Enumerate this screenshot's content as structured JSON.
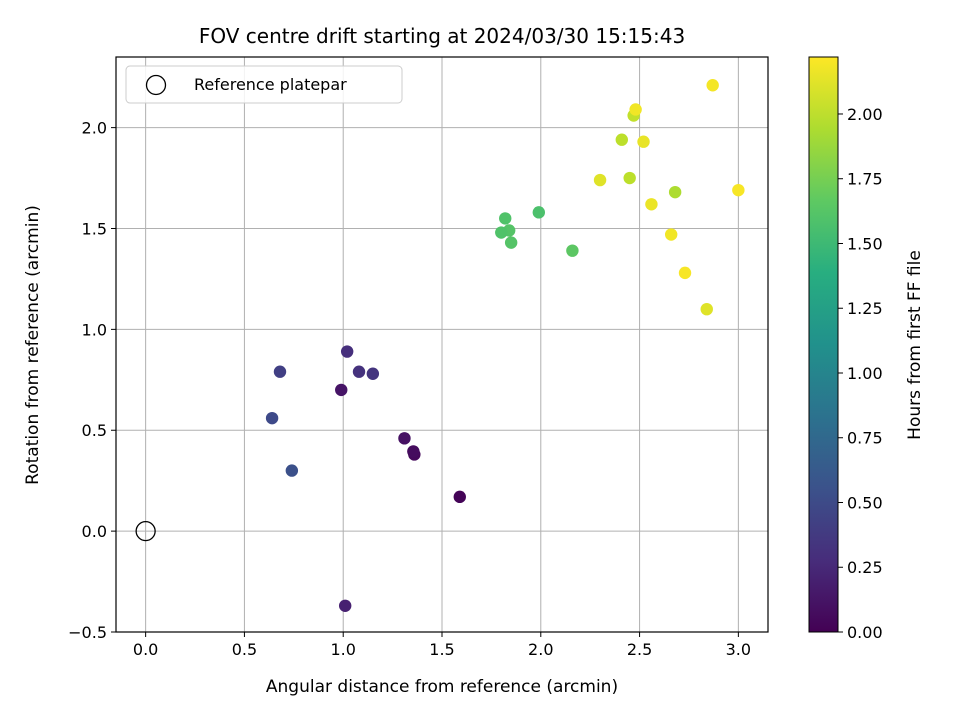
{
  "chart_data": {
    "type": "scatter",
    "title": "FOV centre drift starting at 2024/03/30 15:15:43",
    "xlabel": "Angular distance from reference (arcmin)",
    "ylabel": "Rotation from reference (arcmin)",
    "xlim": [
      -0.15,
      3.15
    ],
    "ylim": [
      -0.5,
      2.35
    ],
    "xticks": [
      0.0,
      0.5,
      1.0,
      1.5,
      2.0,
      2.5,
      3.0
    ],
    "xtick_labels": [
      "0.0",
      "0.5",
      "1.0",
      "1.5",
      "2.0",
      "2.5",
      "3.0"
    ],
    "yticks": [
      -0.5,
      0.0,
      0.5,
      1.0,
      1.5,
      2.0
    ],
    "ytick_labels": [
      "−0.5",
      "0.0",
      "0.5",
      "1.0",
      "1.5",
      "2.0"
    ],
    "grid": true,
    "colormap": "viridis",
    "colorbar": {
      "label": "Hours from first FF file",
      "range": [
        0.0,
        2.22
      ],
      "ticks": [
        0.0,
        0.25,
        0.5,
        0.75,
        1.0,
        1.25,
        1.5,
        1.75,
        2.0
      ],
      "tick_labels": [
        "0.00",
        "0.25",
        "0.50",
        "0.75",
        "1.00",
        "1.25",
        "1.50",
        "1.75",
        "2.00"
      ]
    },
    "legend": {
      "placement": "top-left",
      "entries": [
        "Reference platepar"
      ]
    },
    "reference_point": {
      "x": 0.0,
      "y": 0.0
    },
    "points": [
      {
        "x": 1.59,
        "y": 0.17,
        "c": 0.02
      },
      {
        "x": 1.36,
        "y": 0.38,
        "c": 0.05
      },
      {
        "x": 1.355,
        "y": 0.395,
        "c": 0.07
      },
      {
        "x": 1.31,
        "y": 0.46,
        "c": 0.1
      },
      {
        "x": 0.99,
        "y": 0.7,
        "c": 0.12
      },
      {
        "x": 1.01,
        "y": -0.37,
        "c": 0.2
      },
      {
        "x": 1.02,
        "y": 0.89,
        "c": 0.3
      },
      {
        "x": 1.08,
        "y": 0.79,
        "c": 0.32
      },
      {
        "x": 1.15,
        "y": 0.78,
        "c": 0.34
      },
      {
        "x": 0.68,
        "y": 0.79,
        "c": 0.42
      },
      {
        "x": 0.64,
        "y": 0.56,
        "c": 0.5
      },
      {
        "x": 0.74,
        "y": 0.3,
        "c": 0.55
      },
      {
        "x": 1.99,
        "y": 1.58,
        "c": 1.58
      },
      {
        "x": 1.82,
        "y": 1.55,
        "c": 1.6
      },
      {
        "x": 1.84,
        "y": 1.49,
        "c": 1.62
      },
      {
        "x": 1.8,
        "y": 1.48,
        "c": 1.6
      },
      {
        "x": 1.85,
        "y": 1.43,
        "c": 1.62
      },
      {
        "x": 2.16,
        "y": 1.39,
        "c": 1.65
      },
      {
        "x": 2.45,
        "y": 1.75,
        "c": 2.0
      },
      {
        "x": 2.68,
        "y": 1.68,
        "c": 1.95
      },
      {
        "x": 2.41,
        "y": 1.94,
        "c": 2.0
      },
      {
        "x": 2.47,
        "y": 2.06,
        "c": 2.02
      },
      {
        "x": 2.3,
        "y": 1.74,
        "c": 2.12
      },
      {
        "x": 2.52,
        "y": 1.93,
        "c": 2.15
      },
      {
        "x": 2.48,
        "y": 2.09,
        "c": 2.18
      },
      {
        "x": 2.56,
        "y": 1.62,
        "c": 2.16
      },
      {
        "x": 2.66,
        "y": 1.47,
        "c": 2.18
      },
      {
        "x": 2.73,
        "y": 1.28,
        "c": 2.2
      },
      {
        "x": 2.84,
        "y": 1.1,
        "c": 2.12
      },
      {
        "x": 2.87,
        "y": 2.21,
        "c": 2.19
      },
      {
        "x": 3.0,
        "y": 1.69,
        "c": 2.2
      }
    ]
  }
}
